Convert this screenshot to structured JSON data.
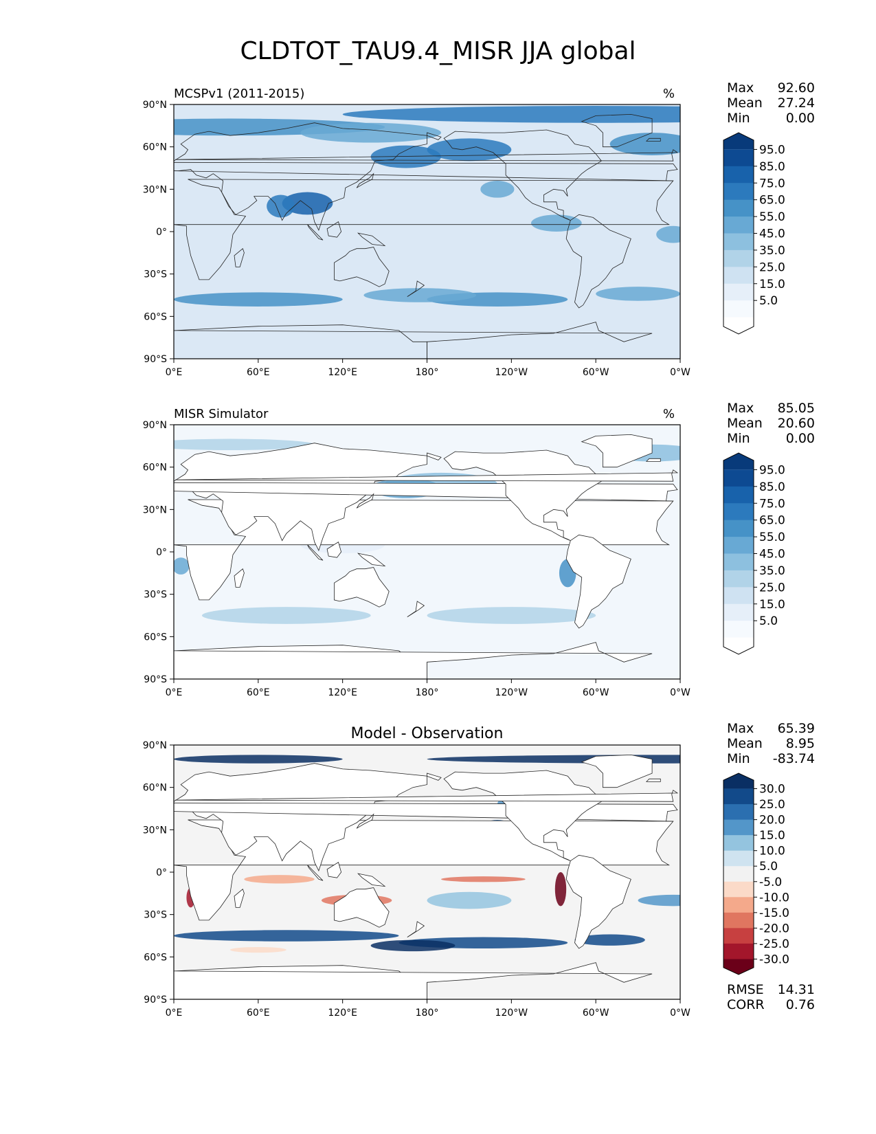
{
  "page_title": "CLDTOT_TAU9.4_MISR JJA global",
  "axes": {
    "x_ticks": [
      "0°E",
      "60°E",
      "120°E",
      "180°",
      "120°W",
      "60°W",
      "0°W"
    ],
    "y_ticks": [
      "90°N",
      "60°N",
      "30°N",
      "0°",
      "30°S",
      "60°S",
      "90°S"
    ]
  },
  "panels": [
    {
      "title_left": "MCSPv1 (2011-2015)",
      "title_center": "",
      "units": "%",
      "stats": [
        {
          "label": "Max",
          "value": "92.60"
        },
        {
          "label": "Mean",
          "value": "27.24"
        },
        {
          "label": "Min",
          "value": "0.00"
        }
      ],
      "footer_stats": [],
      "colorbar": {
        "labels": [
          "95.0",
          "85.0",
          "75.0",
          "65.0",
          "55.0",
          "45.0",
          "35.0",
          "25.0",
          "15.0",
          "5.0"
        ],
        "colors": [
          "#083a7a",
          "#0d4a92",
          "#1862ab",
          "#2c7abd",
          "#4692c7",
          "#68a9d4",
          "#8dc0df",
          "#b1d3e8",
          "#cfe2f2",
          "#e6eff9",
          "#f6fafe",
          "#ffffff"
        ]
      }
    },
    {
      "title_left": "MISR Simulator",
      "title_center": "",
      "units": "%",
      "stats": [
        {
          "label": "Max",
          "value": "85.05"
        },
        {
          "label": "Mean",
          "value": "20.60"
        },
        {
          "label": "Min",
          "value": "0.00"
        }
      ],
      "footer_stats": [],
      "colorbar": {
        "labels": [
          "95.0",
          "85.0",
          "75.0",
          "65.0",
          "55.0",
          "45.0",
          "35.0",
          "25.0",
          "15.0",
          "5.0"
        ],
        "colors": [
          "#083a7a",
          "#0d4a92",
          "#1862ab",
          "#2c7abd",
          "#4692c7",
          "#68a9d4",
          "#8dc0df",
          "#b1d3e8",
          "#cfe2f2",
          "#e6eff9",
          "#f6fafe",
          "#ffffff"
        ]
      }
    },
    {
      "title_left": "",
      "title_center": "Model - Observation",
      "units": "",
      "stats": [
        {
          "label": "Max",
          "value": "65.39"
        },
        {
          "label": "Mean",
          "value": "8.95"
        },
        {
          "label": "Min",
          "value": "-83.74"
        }
      ],
      "footer_stats": [
        {
          "label": "RMSE",
          "value": "14.31"
        },
        {
          "label": "CORR",
          "value": "0.76"
        }
      ],
      "colorbar": {
        "labels": [
          "30.0",
          "25.0",
          "20.0",
          "15.0",
          "10.0",
          "5.0",
          "-5.0",
          "-10.0",
          "-15.0",
          "-20.0",
          "-25.0",
          "-30.0"
        ],
        "colors": [
          "#0a2f63",
          "#124a8a",
          "#2b6fb0",
          "#5396c9",
          "#94c4df",
          "#cfe3f0",
          "#f2f2f2",
          "#fbdac8",
          "#f4a98b",
          "#e07660",
          "#c74040",
          "#a3162b",
          "#6b0019"
        ]
      }
    }
  ]
}
